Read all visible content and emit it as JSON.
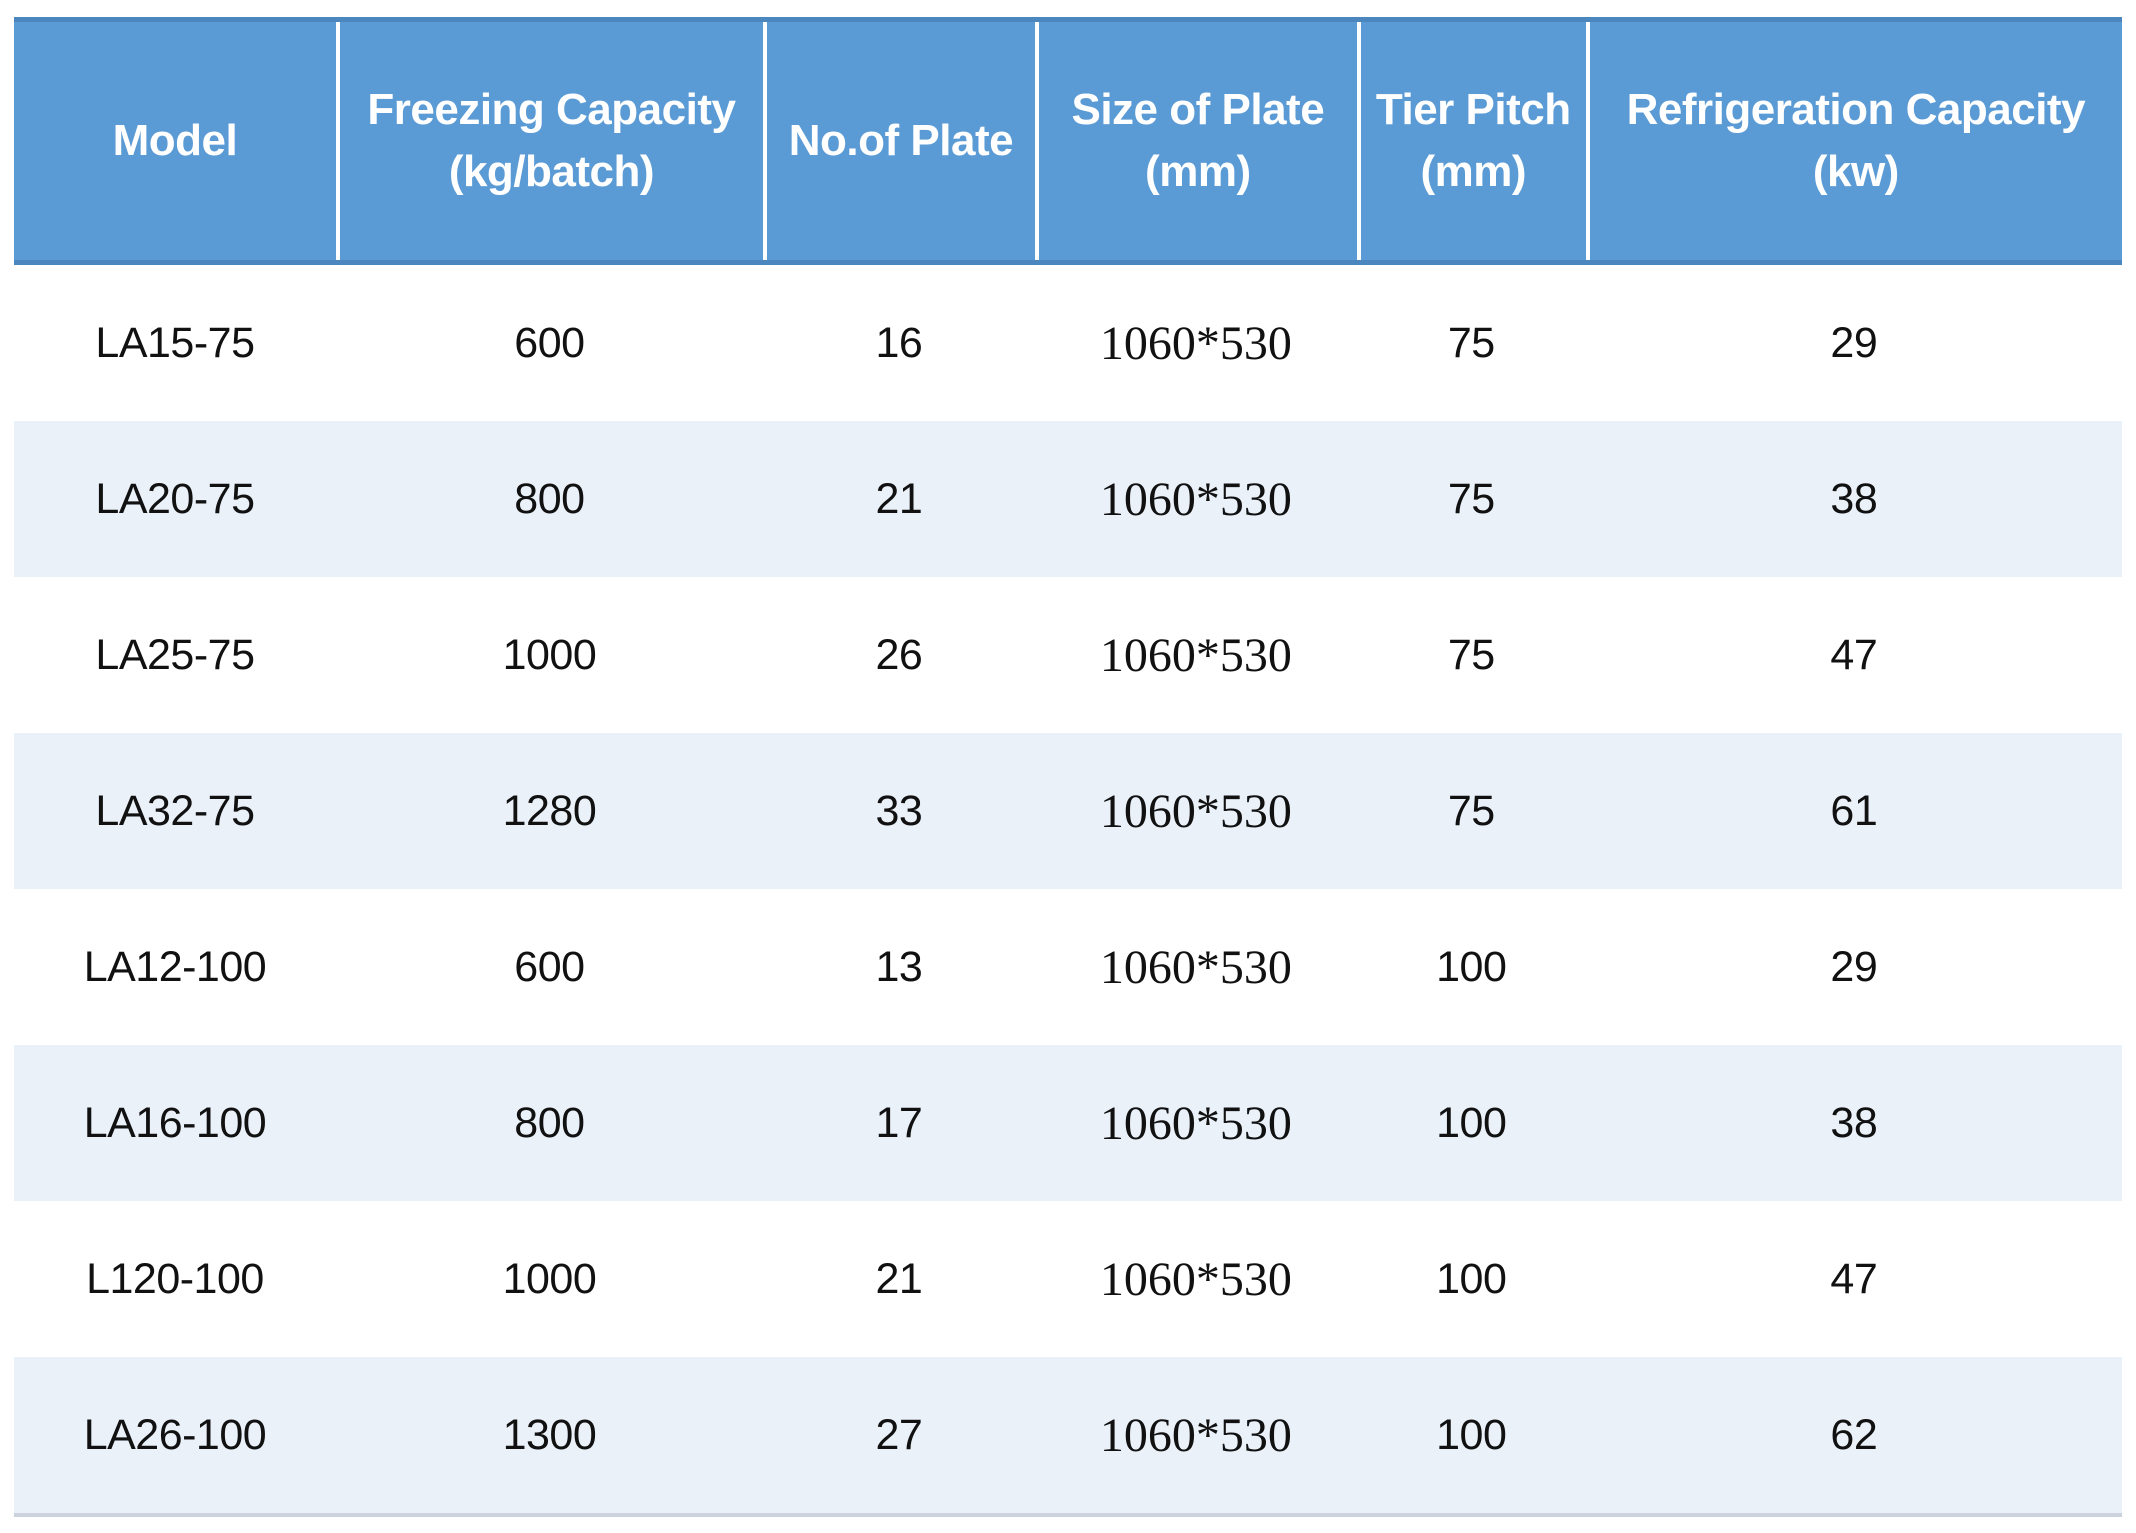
{
  "page": {
    "background": "#ffffff"
  },
  "table": {
    "style": {
      "header_bg": "#5b9bd5",
      "header_text": "#ffffff",
      "header_border": "#4c86bf",
      "divider": "#ffffff",
      "row_bg": "#ffffff",
      "row_alt_bg": "#eaf1f9",
      "body_text": "#111111",
      "bottom_border": "#ccd3de"
    },
    "columns": [
      {
        "id": "model",
        "line1": "Model",
        "line2": ""
      },
      {
        "id": "freezing",
        "line1": "Freezing Capacity",
        "line2": "(kg/batch)"
      },
      {
        "id": "plates",
        "line1": "No.of Plate",
        "line2": ""
      },
      {
        "id": "size",
        "line1": "Size of Plate",
        "line2": "(mm)"
      },
      {
        "id": "pitch",
        "line1": "Tier Pitch",
        "line2": "(mm)"
      },
      {
        "id": "refrigeration",
        "line1": "Refrigeration Capacity",
        "line2": "(kw)"
      }
    ],
    "rows": [
      {
        "model": "LA15-75",
        "freezing": "600",
        "plates": "16",
        "size": "1060*530",
        "pitch": "75",
        "refrigeration": "29"
      },
      {
        "model": "LA20-75",
        "freezing": "800",
        "plates": "21",
        "size": "1060*530",
        "pitch": "75",
        "refrigeration": "38"
      },
      {
        "model": "LA25-75",
        "freezing": "1000",
        "plates": "26",
        "size": "1060*530",
        "pitch": "75",
        "refrigeration": "47"
      },
      {
        "model": "LA32-75",
        "freezing": "1280",
        "plates": "33",
        "size": "1060*530",
        "pitch": "75",
        "refrigeration": "61"
      },
      {
        "model": "LA12-100",
        "freezing": "600",
        "plates": "13",
        "size": "1060*530",
        "pitch": "100",
        "refrigeration": "29"
      },
      {
        "model": "LA16-100",
        "freezing": "800",
        "plates": "17",
        "size": "1060*530",
        "pitch": "100",
        "refrigeration": "38"
      },
      {
        "model": "L120-100",
        "freezing": "1000",
        "plates": "21",
        "size": "1060*530",
        "pitch": "100",
        "refrigeration": "47"
      },
      {
        "model": "LA26-100",
        "freezing": "1300",
        "plates": "27",
        "size": "1060*530",
        "pitch": "100",
        "refrigeration": "62"
      }
    ]
  },
  "chart_data": {
    "type": "table",
    "columns": [
      "Model",
      "Freezing Capacity (kg/batch)",
      "No.of Plate",
      "Size of Plate (mm)",
      "Tier Pitch (mm)",
      "Refrigeration Capacity (kw)"
    ],
    "rows": [
      [
        "LA15-75",
        600,
        16,
        "1060*530",
        75,
        29
      ],
      [
        "LA20-75",
        800,
        21,
        "1060*530",
        75,
        38
      ],
      [
        "LA25-75",
        1000,
        26,
        "1060*530",
        75,
        47
      ],
      [
        "LA32-75",
        1280,
        33,
        "1060*530",
        75,
        61
      ],
      [
        "LA12-100",
        600,
        13,
        "1060*530",
        100,
        29
      ],
      [
        "LA16-100",
        800,
        17,
        "1060*530",
        100,
        38
      ],
      [
        "L120-100",
        1000,
        21,
        "1060*530",
        100,
        47
      ],
      [
        "LA26-100",
        1300,
        27,
        "1060*530",
        100,
        62
      ]
    ]
  }
}
